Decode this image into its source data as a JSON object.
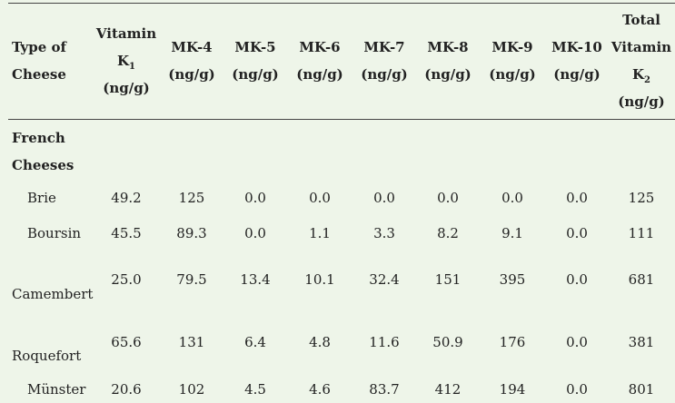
{
  "table": {
    "header": [
      {
        "text": "Type of Cheese"
      },
      {
        "text": "Vitamin K",
        "sub": "1",
        "after": " (ng/g)"
      },
      {
        "text": "MK-4 (ng/g)"
      },
      {
        "text": "MK-5 (ng/g)"
      },
      {
        "text": "MK-6 (ng/g)"
      },
      {
        "text": "MK-7 (ng/g)"
      },
      {
        "text": "MK-8 (ng/g)"
      },
      {
        "text": "MK-9 (ng/g)"
      },
      {
        "text": "MK-10 (ng/g)"
      },
      {
        "text": "Total Vitamin K",
        "sub": "2",
        "after": " (ng/g)"
      }
    ],
    "section": "French Cheeses",
    "rows": [
      {
        "name": "Brie",
        "values": [
          "49.2",
          "125",
          "0.0",
          "0.0",
          "0.0",
          "0.0",
          "0.0",
          "0.0",
          "125"
        ]
      },
      {
        "name": "Boursin",
        "values": [
          "45.5",
          "89.3",
          "0.0",
          "1.1",
          "3.3",
          "8.2",
          "9.1",
          "0.0",
          "111"
        ]
      },
      {
        "name": "Camembert",
        "values": [
          "25.0",
          "79.5",
          "13.4",
          "10.1",
          "32.4",
          "151",
          "395",
          "0.0",
          "681"
        ]
      },
      {
        "name": "Roquefort",
        "values": [
          "65.6",
          "131",
          "6.4",
          "4.8",
          "11.6",
          "50.9",
          "176",
          "0.0",
          "381"
        ]
      },
      {
        "name": "Münster",
        "values": [
          "20.6",
          "102",
          "4.5",
          "4.6",
          "83.7",
          "412",
          "194",
          "0.0",
          "801"
        ]
      }
    ]
  }
}
